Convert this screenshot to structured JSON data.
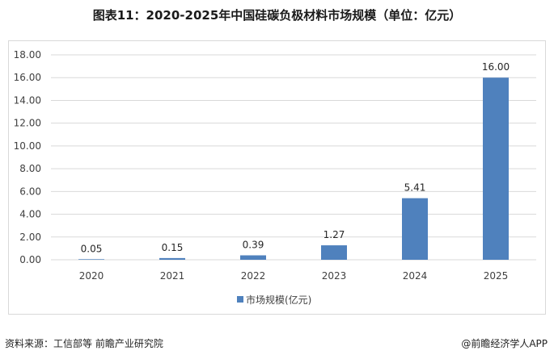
{
  "title": "图表11：2020-2025年中国硅碳负极材料市场规模（单位：亿元）",
  "footer": {
    "source": "资料来源：工信部等  前瞻产业研究院",
    "brand": "@前瞻经济学人APP"
  },
  "colors": {
    "bar": "#4f81bd",
    "grid": "#d9d9d9"
  },
  "chart_data": {
    "type": "bar",
    "categories": [
      "2020",
      "2021",
      "2022",
      "2023",
      "2024",
      "2025"
    ],
    "series": [
      {
        "name": "市场规模(亿元)",
        "values": [
          0.05,
          0.15,
          0.39,
          1.27,
          5.41,
          16.0
        ]
      }
    ],
    "data_labels": [
      "0.05",
      "0.15",
      "0.39",
      "1.27",
      "5.41",
      "16.00"
    ],
    "yticks": [
      "0.00",
      "2.00",
      "4.00",
      "6.00",
      "8.00",
      "10.00",
      "12.00",
      "14.00",
      "16.00",
      "18.00"
    ],
    "ylim": [
      0,
      18
    ],
    "grid": true,
    "legend": "bottom-center"
  }
}
